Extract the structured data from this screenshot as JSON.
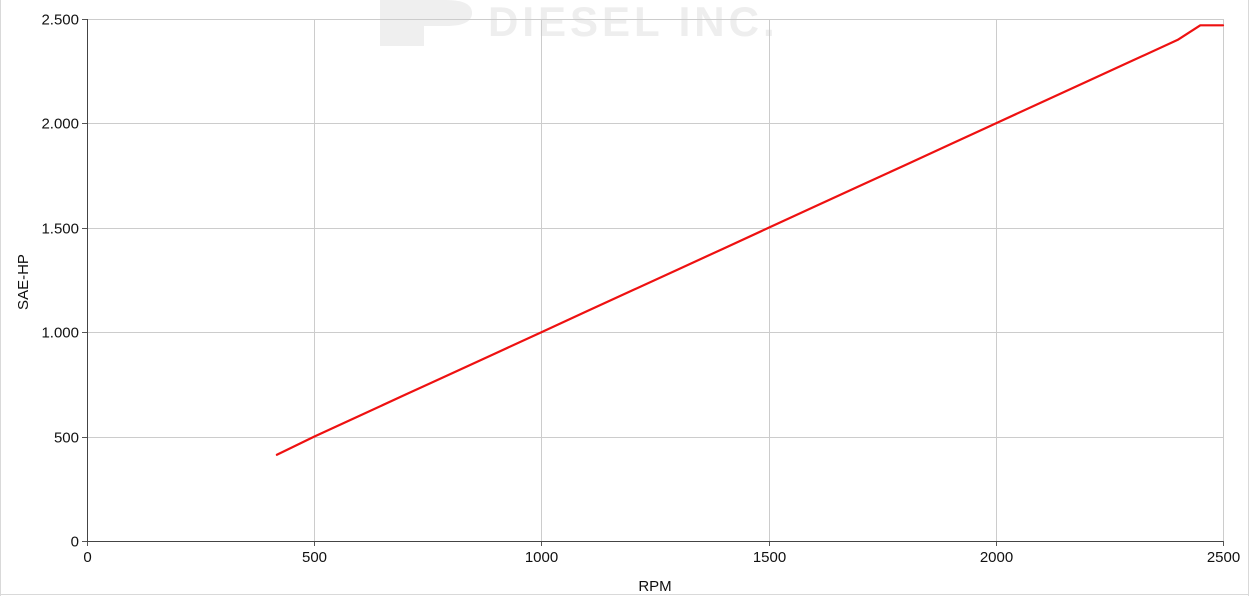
{
  "watermark": {
    "text": "DIESEL INC.",
    "color": "#eeeeee"
  },
  "chart_data": {
    "type": "line",
    "title": "",
    "xlabel": "RPM",
    "ylabel": "SAE-HP",
    "xlim": [
      0,
      2500
    ],
    "ylim": [
      0,
      2500
    ],
    "x_ticks": [
      0,
      500,
      1000,
      1500,
      2000,
      2500
    ],
    "x_tick_labels": [
      "0",
      "500",
      "1000",
      "1500",
      "2000",
      "2500"
    ],
    "y_ticks": [
      0,
      500,
      1000,
      1500,
      2000,
      2500
    ],
    "y_tick_labels": [
      "0",
      "500",
      "1.000",
      "1.500",
      "2.000",
      "2.500"
    ],
    "grid": true,
    "legend": "none",
    "series": [
      {
        "color": "#ee1111",
        "x": [
          418,
          500,
          600,
          700,
          800,
          900,
          1000,
          1100,
          1200,
          1300,
          1400,
          1500,
          1600,
          1700,
          1800,
          1900,
          2000,
          2100,
          2200,
          2300,
          2400,
          2450,
          2500
        ],
        "y": [
          413,
          500,
          600,
          700,
          800,
          900,
          1000,
          1100,
          1200,
          1300,
          1400,
          1500,
          1600,
          1700,
          1800,
          1900,
          2000,
          2100,
          2200,
          2300,
          2400,
          2470,
          2470
        ]
      }
    ]
  }
}
